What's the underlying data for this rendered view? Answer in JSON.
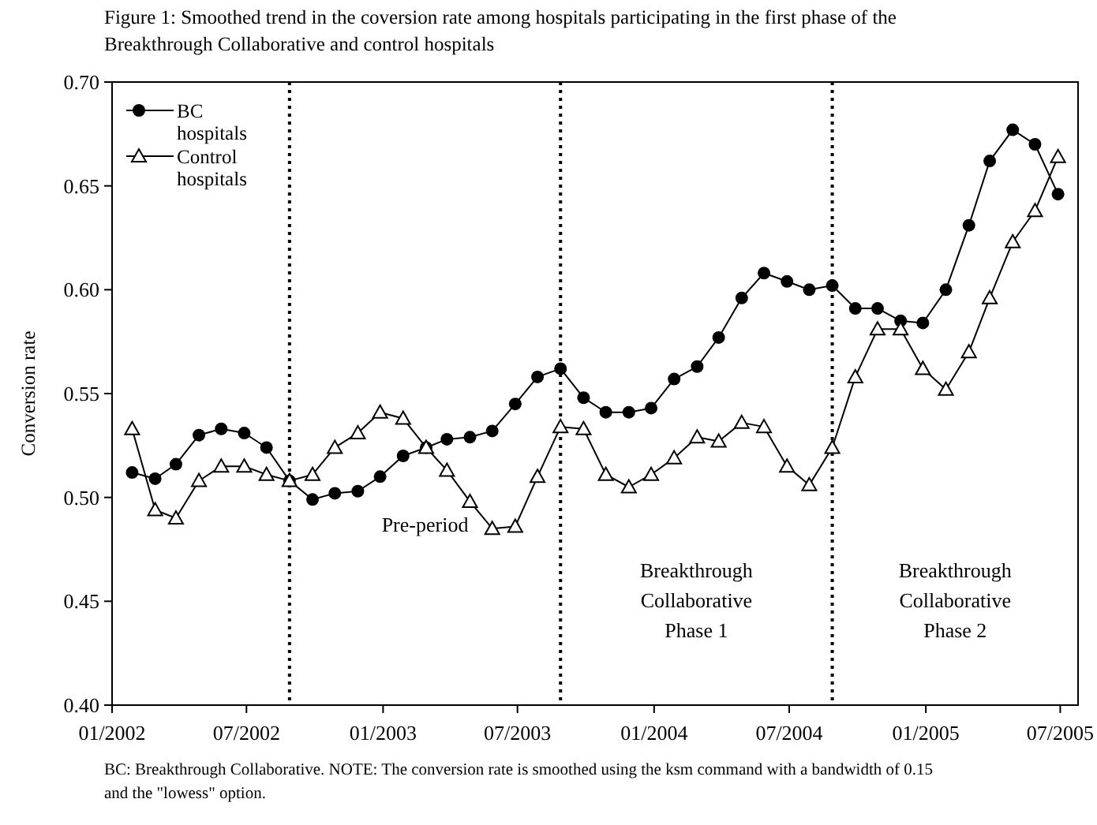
{
  "chart_data": {
    "type": "line",
    "title": "Figure 1: Smoothed trend in the coversion rate among hospitals participating in the first phase of the Breakthrough Collaborative and control hospitals",
    "ylabel": "Conversion rate",
    "x": [
      "2002-01-28",
      "2002-02-28",
      "2002-03-28",
      "2002-04-28",
      "2002-05-28",
      "2002-06-28",
      "2002-07-28",
      "2002-08-28",
      "2002-09-28",
      "2002-10-28",
      "2002-11-28",
      "2002-12-28",
      "2003-01-28",
      "2003-02-28",
      "2003-03-28",
      "2003-04-28",
      "2003-05-28",
      "2003-06-28",
      "2003-07-28",
      "2003-08-28",
      "2003-09-28",
      "2003-10-28",
      "2003-11-28",
      "2003-12-28",
      "2004-01-28",
      "2004-02-28",
      "2004-03-28",
      "2004-04-28",
      "2004-05-28",
      "2004-06-28",
      "2004-07-28",
      "2004-08-28",
      "2004-09-28",
      "2004-10-28",
      "2004-11-28",
      "2004-12-28",
      "2005-01-28",
      "2005-02-28",
      "2005-03-28",
      "2005-04-28",
      "2005-05-28",
      "2005-06-28"
    ],
    "series": [
      {
        "name": "BC hospitals",
        "color": "#000000",
        "marker": "circle",
        "values": [
          0.512,
          0.509,
          0.516,
          0.53,
          0.533,
          0.531,
          0.524,
          0.508,
          0.499,
          0.502,
          0.503,
          0.51,
          0.52,
          0.524,
          0.528,
          0.529,
          0.532,
          0.545,
          0.558,
          0.562,
          0.548,
          0.541,
          0.541,
          0.543,
          0.557,
          0.563,
          0.577,
          0.596,
          0.608,
          0.604,
          0.6,
          0.602,
          0.591,
          0.591,
          0.585,
          0.584,
          0.6,
          0.631,
          0.662,
          0.677,
          0.67,
          0.646
        ]
      },
      {
        "name": "Control hospitals",
        "color": "#000000",
        "marker": "triangle",
        "values": [
          0.533,
          0.494,
          0.49,
          0.508,
          0.515,
          0.515,
          0.511,
          0.508,
          0.511,
          0.524,
          0.531,
          0.541,
          0.538,
          0.524,
          0.513,
          0.498,
          0.485,
          0.486,
          0.51,
          0.534,
          0.533,
          0.511,
          0.505,
          0.511,
          0.519,
          0.529,
          0.527,
          0.536,
          0.534,
          0.515,
          0.506,
          0.524,
          0.558,
          0.581,
          0.581,
          0.562,
          0.552,
          0.57,
          0.596,
          0.623,
          0.638,
          0.664
        ]
      }
    ],
    "xlim": [
      "2002-01-01",
      "2005-07-25"
    ],
    "xticks": [
      {
        "value": "2002-01-01",
        "label": "01/2002"
      },
      {
        "value": "2002-07-01",
        "label": "07/2002"
      },
      {
        "value": "2003-01-01",
        "label": "01/2003"
      },
      {
        "value": "2003-07-01",
        "label": "07/2003"
      },
      {
        "value": "2004-01-01",
        "label": "01/2004"
      },
      {
        "value": "2004-07-01",
        "label": "07/2004"
      },
      {
        "value": "2005-01-01",
        "label": "01/2005"
      },
      {
        "value": "2005-07-01",
        "label": "07/2005"
      }
    ],
    "ylim": [
      0.4,
      0.7
    ],
    "yticks": [
      {
        "value": 0.4,
        "label": "0.40"
      },
      0.45,
      {
        "value": 0.5,
        "label": "0.50"
      },
      0.55,
      {
        "value": 0.6,
        "label": "0.60"
      },
      0.65,
      {
        "value": 0.7,
        "label": "0.70"
      }
    ],
    "ref_lines": [
      {
        "axis": "x",
        "value": "2002-08-28",
        "line_style": "dotted"
      },
      {
        "axis": "x",
        "value": "2003-08-28",
        "line_style": "dotted"
      },
      {
        "axis": "x",
        "value": "2004-08-28",
        "line_style": "dotted"
      }
    ],
    "annotations": [
      "Pre-period",
      "Breakthrough\nCollaborative\nPhase 1",
      "Breakthrough\nCollaborative\nPhase 2",
      "BC: Breakthrough Collaborative. NOTE: The conversion rate is smoothed using the ksm command with a bandwidth of 0.15 and the \"lowess\" option."
    ],
    "legend": "top left",
    "grid": false,
    "line_style": "solid"
  }
}
